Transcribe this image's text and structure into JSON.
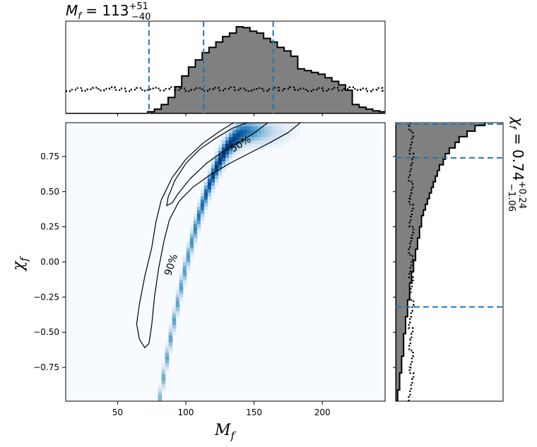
{
  "chart_data": {
    "type": "joint-posterior (heatmap with marginal histograms)",
    "x_param": "M_f",
    "y_param": "chi_f",
    "xlabel": {
      "base": "M",
      "sub": "f"
    },
    "ylabel": {
      "base": "χ",
      "sub": "f"
    },
    "xlim": [
      12,
      246
    ],
    "ylim": [
      -0.99,
      0.99
    ],
    "xticks": [
      50,
      100,
      150,
      200
    ],
    "xtick_labels": [
      "50",
      "100",
      "150",
      "200"
    ],
    "yticks": [
      -0.75,
      -0.5,
      -0.25,
      0.0,
      0.25,
      0.5,
      0.75
    ],
    "ytick_labels": [
      "−0.75",
      "−0.50",
      "−0.25",
      "0.00",
      "0.25",
      "0.50",
      "0.75"
    ],
    "colormap": "Blues",
    "contours": [
      {
        "label": "50%",
        "level": 0.5
      },
      {
        "label": "90%",
        "level": 0.9
      }
    ],
    "mf_summary": {
      "lhs": "M",
      "lhs_sub": "f",
      "median": "113",
      "plus": "+51",
      "minus": "−40",
      "quantiles": [
        73,
        113,
        164
      ]
    },
    "chi_summary": {
      "lhs": "χ",
      "lhs_sub": "f",
      "median": "0.74",
      "plus": "+0.24",
      "minus": "−1.06",
      "quantiles": [
        -0.32,
        0.74,
        0.98
      ]
    },
    "mf_posterior_hist": {
      "bin_edges_start": 12,
      "bin_width": 5,
      "density": [
        0,
        0,
        0,
        0,
        0,
        0,
        0,
        0,
        0,
        0,
        0,
        0,
        0.02,
        0.05,
        0.1,
        0.18,
        0.3,
        0.42,
        0.52,
        0.6,
        0.68,
        0.74,
        0.8,
        0.86,
        0.9,
        0.97,
        0.96,
        0.92,
        0.9,
        0.84,
        0.8,
        0.74,
        0.7,
        0.64,
        0.5,
        0.48,
        0.46,
        0.44,
        0.4,
        0.36,
        0.32,
        0.26,
        0.1,
        0.07,
        0.05,
        0.03,
        0.02,
        0.01,
        0.01,
        0,
        0,
        0,
        0,
        0,
        0,
        0,
        0,
        0,
        0,
        0,
        0,
        0,
        0,
        0,
        0,
        0,
        0,
        0,
        0
      ]
    },
    "mf_prior_hist_level": 0.28,
    "chi_posterior_hist": {
      "bin_edges_start": -0.99,
      "bin_width": 0.04,
      "density": [
        0.01,
        0.01,
        0.02,
        0.02,
        0.02,
        0.03,
        0.03,
        0.03,
        0.04,
        0.04,
        0.04,
        0.04,
        0.05,
        0.05,
        0.05,
        0.06,
        0.06,
        0.06,
        0.07,
        0.07,
        0.07,
        0.08,
        0.08,
        0.09,
        0.09,
        0.1,
        0.1,
        0.11,
        0.11,
        0.12,
        0.12,
        0.13,
        0.13,
        0.14,
        0.15,
        0.16,
        0.17,
        0.18,
        0.19,
        0.2,
        0.21,
        0.22,
        0.24,
        0.25,
        0.27,
        0.3,
        0.32,
        0.36,
        0.4,
        0.45,
        0.52
      ]
    },
    "chi_prior_hist_level": 0.15
  }
}
